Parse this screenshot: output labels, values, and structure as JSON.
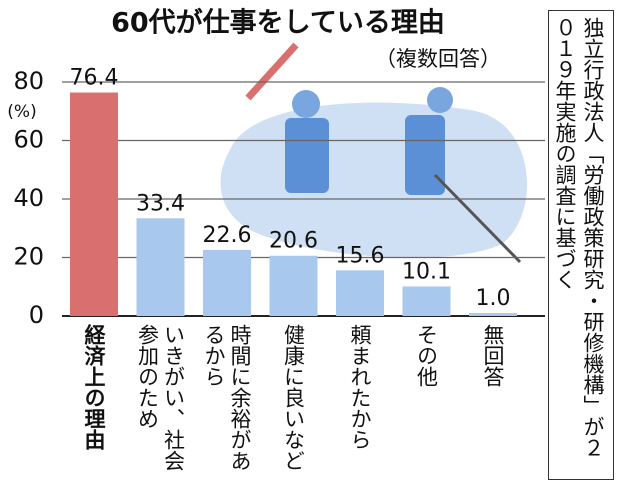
{
  "chart_data": {
    "type": "bar",
    "title": "60代が仕事をしている理由",
    "subtitle": "（複数回答）",
    "y_label": "(%)",
    "source": "独立行政法人「労働政策研究・研修機構」が２０１９年実施の調査に基づく",
    "categories": [
      "経済上の理由",
      "いきがい、社会参加のため",
      "時間に余裕があるから",
      "健康に良いなど",
      "頼まれたから",
      "その他",
      "無回答"
    ],
    "values": [
      76.4,
      33.4,
      22.6,
      20.6,
      15.6,
      10.1,
      1.0
    ],
    "value_labels": [
      "76.4",
      "33.4",
      "22.6",
      "20.6",
      "15.6",
      "10.1",
      "1.0"
    ],
    "colors": [
      "#d9706f",
      "#a9c8ee",
      "#a9c8ee",
      "#a9c8ee",
      "#a9c8ee",
      "#a9c8ee",
      "#a9c8ee"
    ],
    "ylim": [
      0,
      80
    ],
    "yticks": [
      0,
      20,
      40,
      60,
      80
    ],
    "grid": true
  }
}
